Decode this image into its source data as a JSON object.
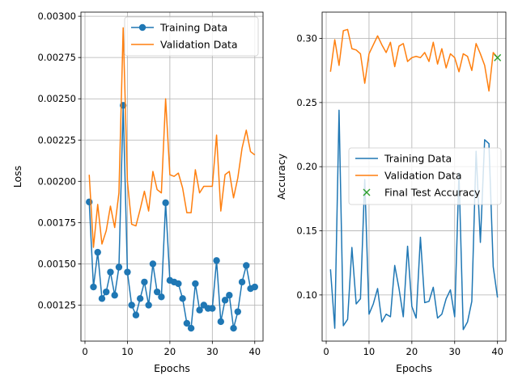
{
  "chart_data": [
    {
      "type": "line",
      "xlabel": "Epochs",
      "ylabel": "Loss",
      "xlim": [
        -0.95,
        41.95
      ],
      "ylim": [
        0.001032,
        0.003025
      ],
      "xticks": [
        0,
        10,
        20,
        30,
        40
      ],
      "xtick_labels": [
        "0",
        "10",
        "20",
        "30",
        "40"
      ],
      "yticks": [
        0.00125,
        0.0015,
        0.00175,
        0.002,
        0.00225,
        0.0025,
        0.00275,
        0.003
      ],
      "ytick_labels": [
        "0.00125",
        "0.00150",
        "0.00175",
        "0.00200",
        "0.00225",
        "0.00250",
        "0.00275",
        "0.00300"
      ],
      "grid": true,
      "legend": "top-right",
      "x": [
        1,
        2,
        3,
        4,
        5,
        6,
        7,
        8,
        9,
        10,
        11,
        12,
        13,
        14,
        15,
        16,
        17,
        18,
        19,
        20,
        21,
        22,
        23,
        24,
        25,
        26,
        27,
        28,
        29,
        30,
        31,
        32,
        33,
        34,
        35,
        36,
        37,
        38,
        39,
        40
      ],
      "series": [
        {
          "name": "Training Data",
          "color": "#1f77b4",
          "marker": "circle",
          "values": [
            0.001875,
            0.00136,
            0.00157,
            0.00129,
            0.00133,
            0.00145,
            0.00131,
            0.00148,
            0.00246,
            0.00145,
            0.00125,
            0.00119,
            0.00129,
            0.00139,
            0.00125,
            0.0015,
            0.00133,
            0.0013,
            0.00187,
            0.0014,
            0.00139,
            0.00138,
            0.00129,
            0.00114,
            0.00111,
            0.00138,
            0.00122,
            0.00125,
            0.00123,
            0.00123,
            0.00152,
            0.00115,
            0.00128,
            0.00131,
            0.00111,
            0.00121,
            0.00139,
            0.00149,
            0.00135,
            0.00136
          ]
        },
        {
          "name": "Validation Data",
          "color": "#ff7f0e",
          "marker": "none",
          "values": [
            0.00204,
            0.0016,
            0.00186,
            0.00162,
            0.0017,
            0.00185,
            0.00172,
            0.00193,
            0.00293,
            0.002,
            0.00174,
            0.00173,
            0.00183,
            0.00194,
            0.00182,
            0.00206,
            0.00195,
            0.00193,
            0.0025,
            0.00204,
            0.00203,
            0.00205,
            0.00196,
            0.00181,
            0.00181,
            0.00207,
            0.00193,
            0.00197,
            0.00197,
            0.00197,
            0.00228,
            0.00182,
            0.00204,
            0.00206,
            0.0019,
            0.00202,
            0.0022,
            0.00231,
            0.00218,
            0.00216
          ]
        }
      ]
    },
    {
      "type": "line",
      "xlabel": "Epochs",
      "ylabel": "Accuracy",
      "xlim": [
        -0.95,
        41.95
      ],
      "ylim": [
        0.064,
        0.3205
      ],
      "xticks": [
        0,
        10,
        20,
        30,
        40
      ],
      "xtick_labels": [
        "0",
        "10",
        "20",
        "30",
        "40"
      ],
      "yticks": [
        0.1,
        0.15,
        0.2,
        0.25,
        0.3
      ],
      "ytick_labels": [
        "0.10",
        "0.15",
        "0.20",
        "0.25",
        "0.30"
      ],
      "grid": true,
      "legend": "center-right",
      "x": [
        1,
        2,
        3,
        4,
        5,
        6,
        7,
        8,
        9,
        10,
        11,
        12,
        13,
        14,
        15,
        16,
        17,
        18,
        19,
        20,
        21,
        22,
        23,
        24,
        25,
        26,
        27,
        28,
        29,
        30,
        31,
        32,
        33,
        34,
        35,
        36,
        37,
        38,
        39,
        40
      ],
      "series": [
        {
          "name": "Training Data",
          "color": "#1f77b4",
          "marker": "none",
          "values": [
            0.12,
            0.074,
            0.244,
            0.076,
            0.081,
            0.137,
            0.093,
            0.097,
            0.19,
            0.085,
            0.093,
            0.105,
            0.079,
            0.085,
            0.083,
            0.123,
            0.105,
            0.083,
            0.138,
            0.091,
            0.082,
            0.145,
            0.094,
            0.095,
            0.106,
            0.082,
            0.085,
            0.097,
            0.104,
            0.083,
            0.195,
            0.073,
            0.079,
            0.095,
            0.212,
            0.141,
            0.221,
            0.218,
            0.122,
            0.098
          ]
        },
        {
          "name": "Validation Data",
          "color": "#ff7f0e",
          "marker": "none",
          "values": [
            0.274,
            0.299,
            0.279,
            0.306,
            0.307,
            0.292,
            0.291,
            0.288,
            0.265,
            0.288,
            0.295,
            0.302,
            0.295,
            0.289,
            0.297,
            0.278,
            0.294,
            0.296,
            0.282,
            0.285,
            0.286,
            0.285,
            0.289,
            0.282,
            0.297,
            0.28,
            0.292,
            0.277,
            0.288,
            0.285,
            0.274,
            0.288,
            0.286,
            0.275,
            0.296,
            0.288,
            0.279,
            0.259,
            0.289,
            0.285
          ]
        },
        {
          "name": "Final Test Accuracy",
          "color": "#2ca02c",
          "marker": "x",
          "points": [
            [
              40,
              0.285
            ]
          ]
        }
      ]
    }
  ]
}
